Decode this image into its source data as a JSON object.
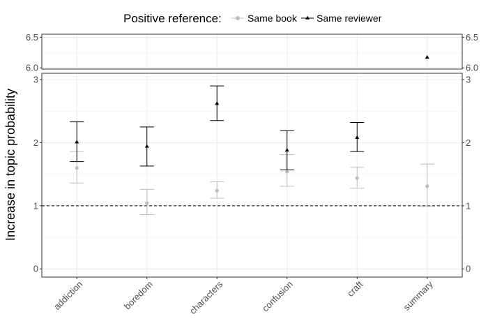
{
  "chart_data": {
    "type": "scatter",
    "title": "",
    "ylabel": "Increase in topic probability",
    "xlabel": "",
    "legend": {
      "title": "Positive reference:",
      "position": "top",
      "entries": [
        {
          "name": "Same book",
          "color": "#bdbdbd",
          "marker": "circle"
        },
        {
          "name": "Same reviewer",
          "color": "#000000",
          "marker": "triangle"
        }
      ]
    },
    "categories": [
      "addiction",
      "boredom",
      "characters",
      "confusion",
      "craft",
      "summary"
    ],
    "reference_line": 1,
    "grid": true,
    "panels": [
      {
        "ylim": [
          5.98,
          6.55
        ],
        "yticks": [
          6.0,
          6.5
        ],
        "ytick_labels": [
          "6.0",
          "6.5"
        ]
      },
      {
        "ylim": [
          -0.13,
          3.1
        ],
        "yticks": [
          0,
          1,
          2,
          3
        ],
        "ytick_labels": [
          "0",
          "1",
          "2",
          "3"
        ]
      }
    ],
    "series": [
      {
        "name": "Same book",
        "color": "#bdbdbd",
        "marker": "circle",
        "values": [
          1.6,
          1.04,
          1.24,
          1.54,
          1.44,
          1.31
        ],
        "lower": [
          1.36,
          0.86,
          1.12,
          1.31,
          1.28,
          0.99
        ],
        "upper": [
          1.86,
          1.26,
          1.38,
          1.81,
          1.61,
          1.66
        ]
      },
      {
        "name": "Same reviewer",
        "color": "#000000",
        "marker": "triangle",
        "values": [
          2.01,
          1.94,
          2.62,
          1.88,
          2.08,
          6.17
        ],
        "lower": [
          1.7,
          1.63,
          2.35,
          1.57,
          1.86,
          null
        ],
        "upper": [
          2.33,
          2.25,
          2.9,
          2.19,
          2.32,
          null
        ]
      }
    ]
  }
}
